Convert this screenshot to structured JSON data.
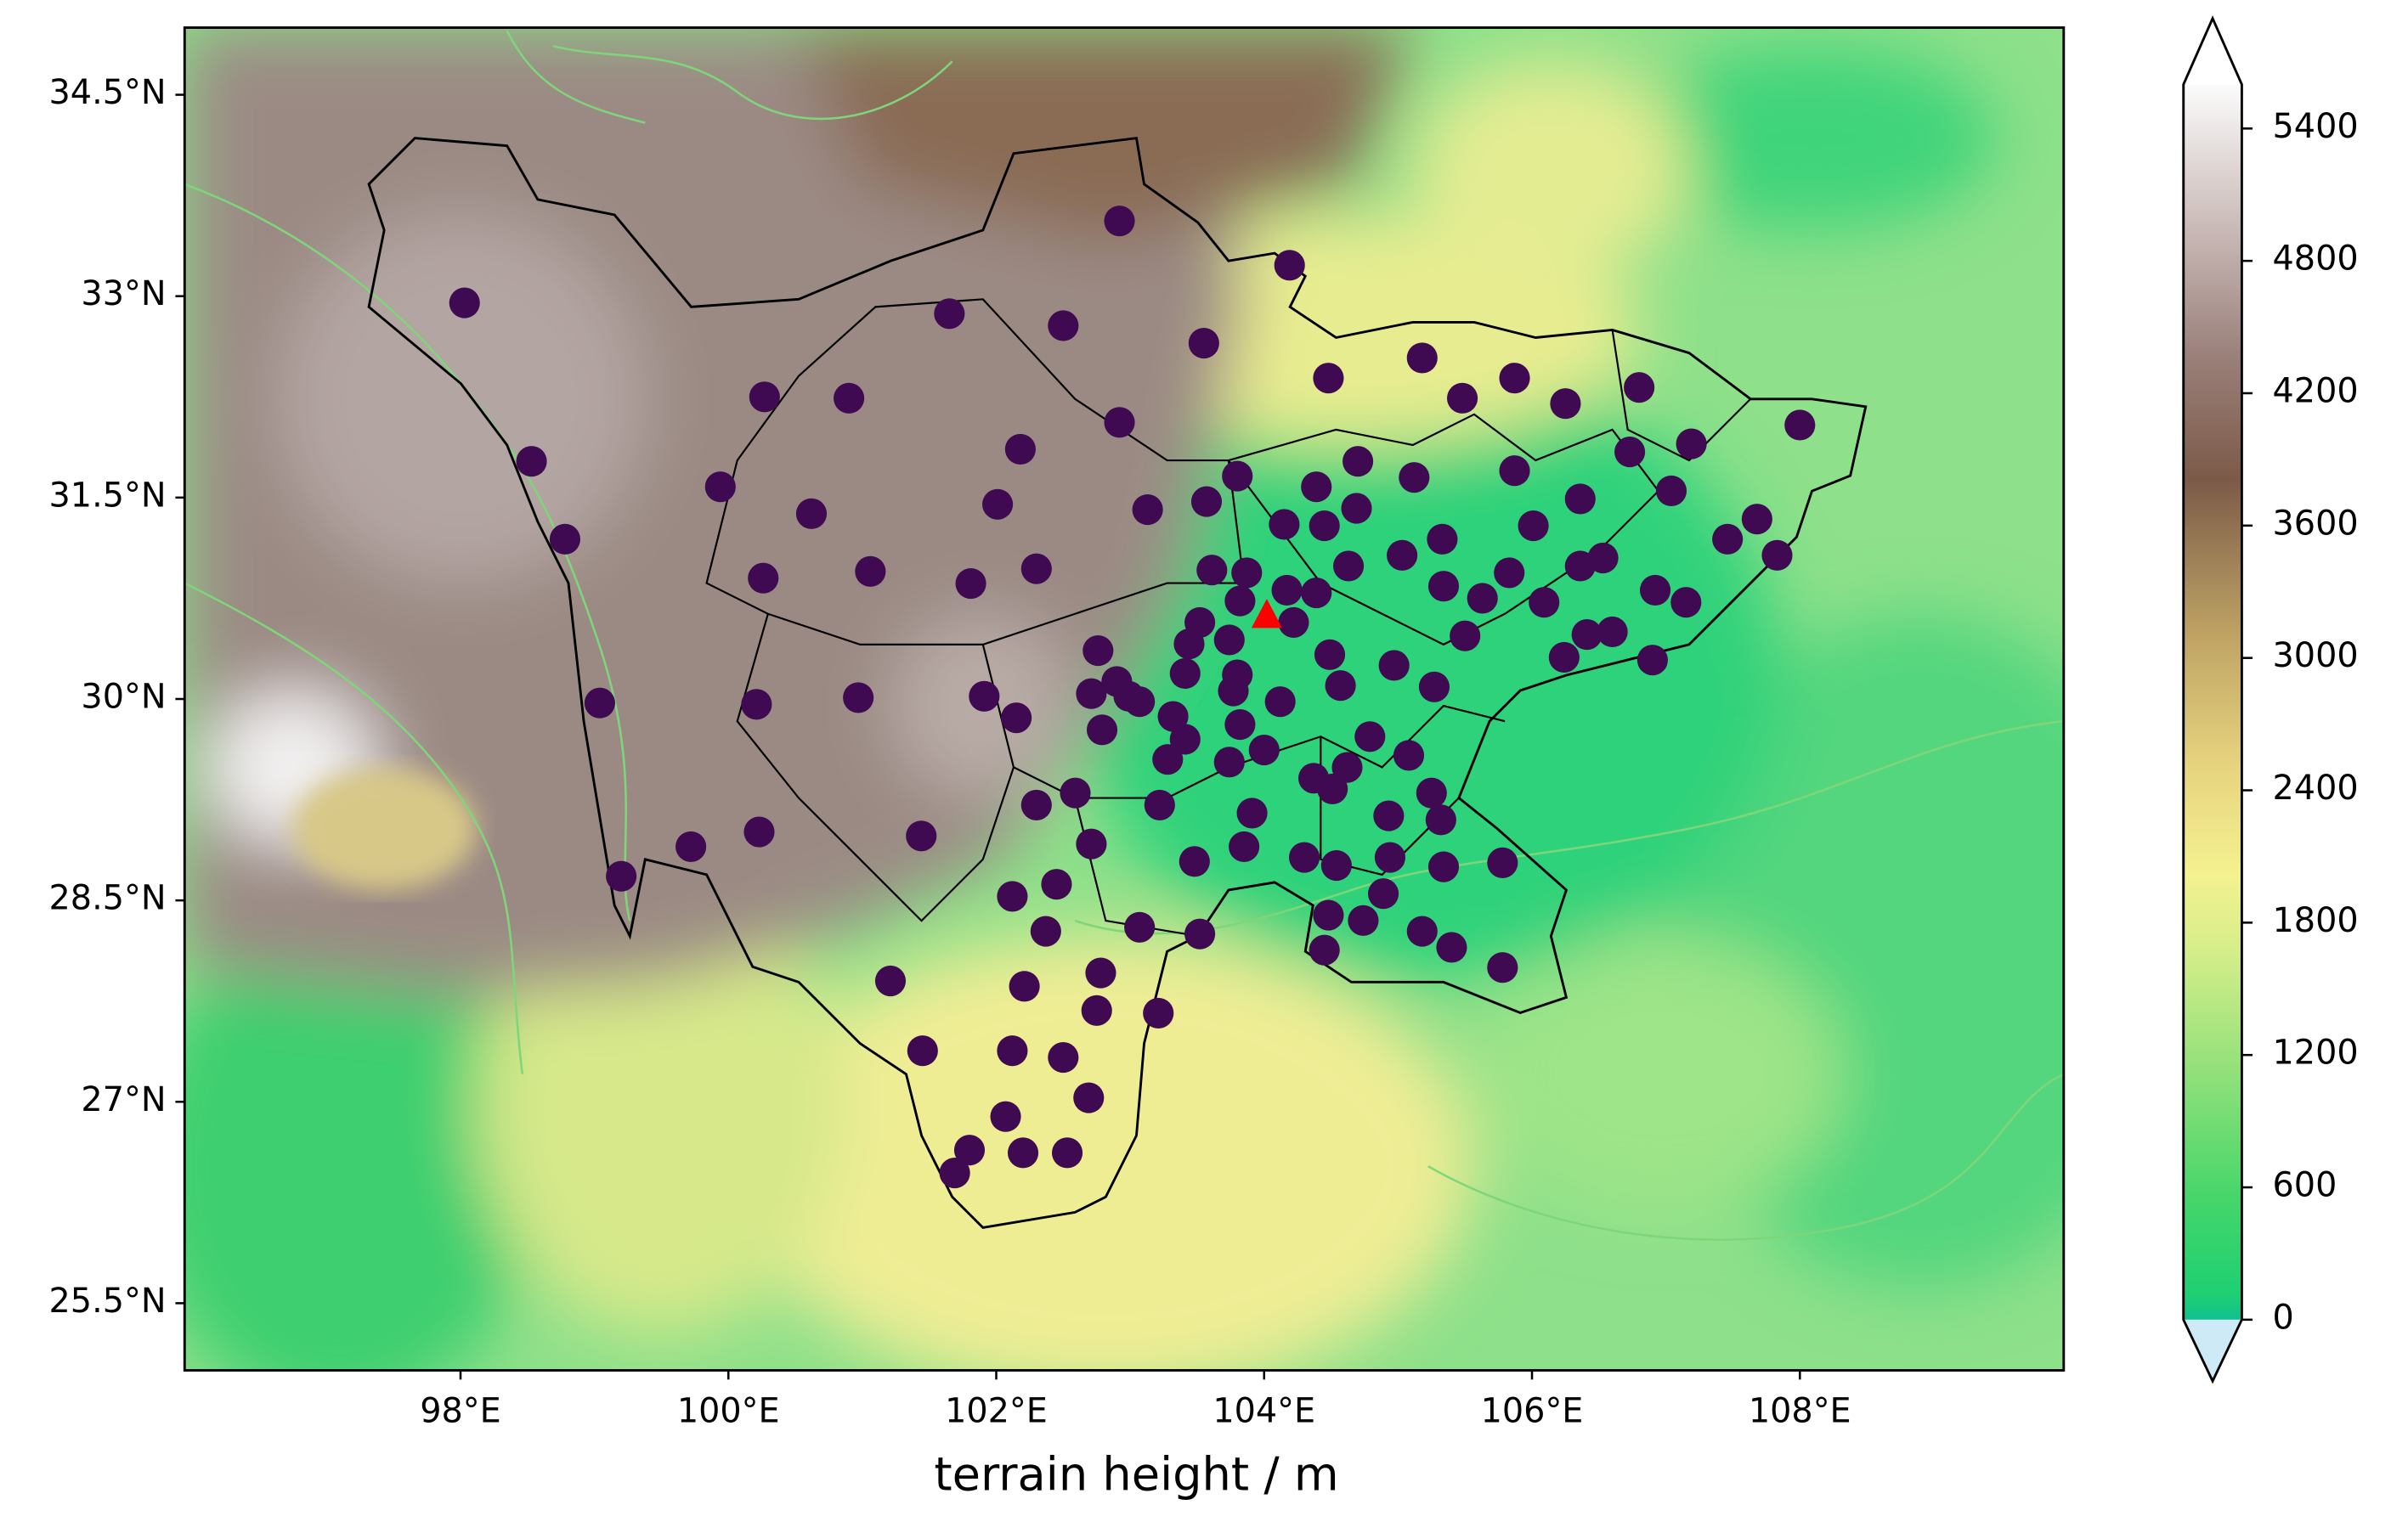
{
  "chart_data": {
    "type": "scatter",
    "xlabel": "terrain height / m",
    "xlim": [
      95.94,
      109.97
    ],
    "ylim": [
      25,
      35
    ],
    "xticks": [
      {
        "value": 98,
        "label": "98°E"
      },
      {
        "value": 100,
        "label": "100°E"
      },
      {
        "value": 102,
        "label": "102°E"
      },
      {
        "value": 104,
        "label": "104°E"
      },
      {
        "value": 106,
        "label": "106°E"
      },
      {
        "value": 108,
        "label": "108°E"
      }
    ],
    "yticks": [
      {
        "value": 25.5,
        "label": "25.5°N"
      },
      {
        "value": 27,
        "label": "27°N"
      },
      {
        "value": 28.5,
        "label": "28.5°N"
      },
      {
        "value": 30,
        "label": "30°N"
      },
      {
        "value": 31.5,
        "label": "31.5°N"
      },
      {
        "value": 33,
        "label": "33°N"
      },
      {
        "value": 34.5,
        "label": "34.5°N"
      }
    ],
    "series": [
      {
        "color": "#3f0a52",
        "marker": "circle",
        "x": [
          102.92,
          104.19,
          98.03,
          101.65,
          102.5,
          103.55,
          104.48,
          105.18,
          105.87,
          106.8,
          100.27,
          100.9,
          105.48,
          106.25,
          102.92,
          108.0,
          98.53,
          102.18,
          106.73,
          107.19,
          104.7,
          99.94,
          100.62,
          102.01,
          103.13,
          103.57,
          103.8,
          105.12,
          105.87,
          106.36,
          107.04,
          98.78,
          104.39,
          104.69,
          104.45,
          104.15,
          106.01,
          107.68,
          107.46,
          107.83,
          105.33,
          105.03,
          106.53,
          106.36,
          105.83,
          101.06,
          100.26,
          102.3,
          101.81,
          103.61,
          103.87,
          104.63,
          104.17,
          104.39,
          105.34,
          105.63,
          106.09,
          106.92,
          107.15,
          103.82,
          103.74,
          103.52,
          103.44,
          104.22,
          102.76,
          104.49,
          104.97,
          105.5,
          106.41,
          106.6,
          106.24,
          106.9,
          99.04,
          100.21,
          100.97,
          101.91,
          102.15,
          102.71,
          102.99,
          102.9,
          103.07,
          103.41,
          103.8,
          103.77,
          104.12,
          104.57,
          105.27,
          103.32,
          103.82,
          102.79,
          104.0,
          104.79,
          105.08,
          103.41,
          103.28,
          103.74,
          104.37,
          104.62,
          104.51,
          104.93,
          105.25,
          105.32,
          102.3,
          102.59,
          103.22,
          103.91,
          99.72,
          100.23,
          101.44,
          102.71,
          103.85,
          104.3,
          104.54,
          104.94,
          105.34,
          105.78,
          103.48,
          99.2,
          102.45,
          102.12,
          104.89,
          104.48,
          104.74,
          102.37,
          103.07,
          103.52,
          105.18,
          105.4,
          104.45,
          105.78,
          101.21,
          102.21,
          102.78,
          103.21,
          102.75,
          101.45,
          102.12,
          102.5,
          102.69,
          102.07,
          101.8,
          101.69,
          102.2,
          102.53
        ],
        "y": [
          33.56,
          33.23,
          32.95,
          32.87,
          32.78,
          32.65,
          32.39,
          32.54,
          32.39,
          32.32,
          32.25,
          32.24,
          32.24,
          32.2,
          32.06,
          32.04,
          31.77,
          31.86,
          31.84,
          31.9,
          31.77,
          31.58,
          31.38,
          31.45,
          31.41,
          31.47,
          31.66,
          31.65,
          31.7,
          31.49,
          31.55,
          31.19,
          31.58,
          31.42,
          31.29,
          31.3,
          31.29,
          31.34,
          31.19,
          31.07,
          31.19,
          31.07,
          31.05,
          30.99,
          30.94,
          30.95,
          30.9,
          30.97,
          30.86,
          30.96,
          30.94,
          30.99,
          30.81,
          30.79,
          30.84,
          30.75,
          30.72,
          30.81,
          30.72,
          30.73,
          30.44,
          30.57,
          30.41,
          30.57,
          30.36,
          30.33,
          30.25,
          30.47,
          30.48,
          30.5,
          30.31,
          30.29,
          29.97,
          29.96,
          30.01,
          30.02,
          29.86,
          30.04,
          30.02,
          30.13,
          29.98,
          30.19,
          30.18,
          30.06,
          29.98,
          30.1,
          30.09,
          29.87,
          29.81,
          29.77,
          29.62,
          29.72,
          29.58,
          29.7,
          29.55,
          29.53,
          29.41,
          29.49,
          29.33,
          29.13,
          29.3,
          29.1,
          29.21,
          29.3,
          29.21,
          29.15,
          28.9,
          29.01,
          28.98,
          28.92,
          28.9,
          28.82,
          28.76,
          28.82,
          28.75,
          28.78,
          28.79,
          28.68,
          28.62,
          28.53,
          28.55,
          28.39,
          28.35,
          28.27,
          28.3,
          28.25,
          28.27,
          28.15,
          28.13,
          28.0,
          27.9,
          27.86,
          27.96,
          27.66,
          27.68,
          27.38,
          27.38,
          27.33,
          27.03,
          26.89,
          26.64,
          26.47,
          26.62,
          26.62
        ]
      },
      {
        "color": "#ff0000",
        "marker": "triangle",
        "x": [
          104.02
        ],
        "y": [
          30.62
        ]
      }
    ],
    "colorbar": {
      "lim": [
        0,
        5600
      ],
      "ticks": [
        0,
        600,
        1200,
        1800,
        2400,
        3000,
        3600,
        4200,
        4800,
        5400
      ]
    }
  }
}
